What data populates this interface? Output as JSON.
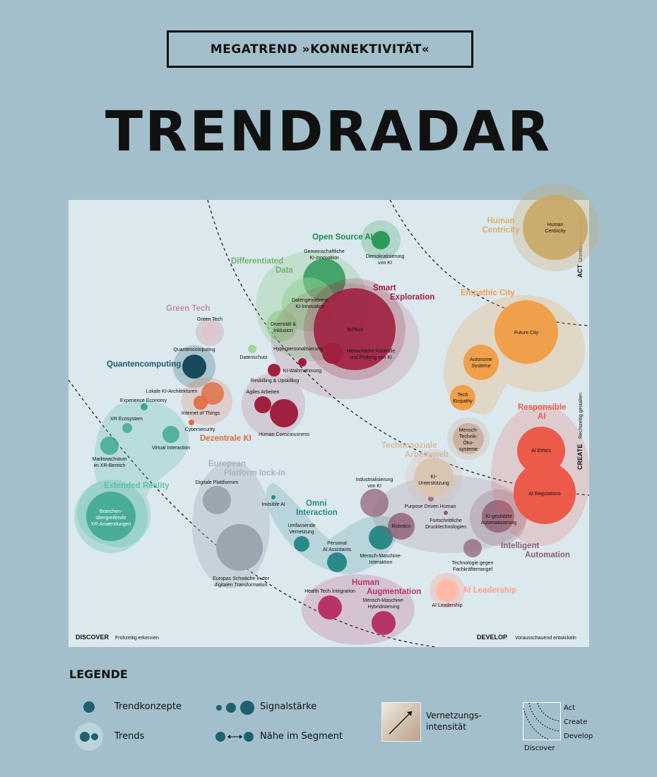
{
  "header": {
    "megatrend": "MEGATREND »KONNEKTIVITÄT«",
    "title": "TRENDRADAR"
  },
  "corners": {
    "discover_bold": "DISCOVER",
    "discover_text": "Frühzeitig erkennen",
    "develop_bold": "DEVELOP",
    "develop_text": "Vorausschauend entwickeln",
    "act_bold": "ACT",
    "act_text": "Unmittelbar handeln",
    "create_bold": "CREATE",
    "create_text": "Rechtzeitig gestalten"
  },
  "colors": {
    "green": "#2e9a5a",
    "teal": "#4bb8a2",
    "darkteal": "#174a5c",
    "crimson": "#a02040",
    "magenta": "#b8336a",
    "orange": "#f0a04a",
    "red": "#ec5a4a",
    "gold": "#c9a765",
    "mauve": "#8e5c74",
    "grey": "#9aa7b0",
    "lightgreen": "#7cc67c",
    "pink": "#ffa08c",
    "rust": "#e06a3e",
    "beige": "#c9a894"
  },
  "segments": [
    {
      "id": "open-source-ai",
      "label": "Open Source AI",
      "color": "#1f8a4c"
    },
    {
      "id": "differentiated-data",
      "label": "Differentiated Data",
      "color": "#6cb66c"
    },
    {
      "id": "smart-exploration",
      "label": "Smart Exploration",
      "color": "#a02040"
    },
    {
      "id": "green-tech",
      "label": "Green Tech",
      "color": "#c4909c"
    },
    {
      "id": "quantencomputing",
      "label": "Quantencomputing",
      "color": "#1d5a6c"
    },
    {
      "id": "dezentrale-ki",
      "label": "Dezentrale KI",
      "color": "#e06a3e"
    },
    {
      "id": "extended-reality",
      "label": "Extended Reality",
      "color": "#5fc0a4"
    },
    {
      "id": "european-platform",
      "label": "European Platform lock-in",
      "color": "#a9b4bc"
    },
    {
      "id": "omni-interaction",
      "label": "Omni Interaction",
      "color": "#2a8a8a"
    },
    {
      "id": "human-augmentation",
      "label": "Human Augmentation",
      "color": "#b8336a"
    },
    {
      "id": "human-centricity",
      "label": "Human Centricity",
      "color": "#c9a765"
    },
    {
      "id": "empathic-city",
      "label": "Empathic City",
      "color": "#f0a04a"
    },
    {
      "id": "responsible-ai",
      "label": "Responsible AI",
      "color": "#ec5a4a"
    },
    {
      "id": "technosoziale",
      "label": "Technosoziale Arbeitswelt",
      "color": "#d5b8a4"
    },
    {
      "id": "intelligent-automation",
      "label": "Intelligent Automation",
      "color": "#8e5c74"
    },
    {
      "id": "ai-leadership",
      "label": "AI Leadership",
      "color": "#ffa08c"
    }
  ],
  "trends": [
    "Gemeinschaftliche KI-Innovation",
    "Demokratisierung von KI",
    "Datengetriebene KI-Innovation",
    "Diversität & Inklusion",
    "EdTech",
    "Hyperpersonalisierung",
    "Datenschutz",
    "Menschliche Kontrolle und Prüfung von KI",
    "KI-Wahrnehmung",
    "Reskilling & Upskilling",
    "Agiles Arbeiten",
    "Human Consciousness",
    "Green Tech",
    "Quantencomputing",
    "Lokale KI-Architekturen",
    "Experience Economy",
    "Internet of Things",
    "XR Ecosystem",
    "Cybersecurity",
    "Virtual Interaction",
    "Marktwachstum im XR-Bereich",
    "Branchen-übergreifende XR-Anwendungen",
    "Digitale Plattformen",
    "Europas Schwäche in der digitalen Transformation",
    "Invisible AI",
    "Umfassende Vernetzung",
    "Personal AI Assistants",
    "Mensch-Maschine-Interaktion",
    "Industrialisierung von KI",
    "Robotics",
    "Purpose Driven Human",
    "Fortschrittliche Drucktechnologien",
    "KI-gestützte Automatisierung",
    "Technologie gegen Fachkräftemangel",
    "Health Tech Integration",
    "Mensch-Maschine-Hybridisierung",
    "AI Leadership",
    "Human Centricity",
    "Future City",
    "Autonome Systeme",
    "Tech Empathy",
    "Mensch-Technik-Öko-systeme",
    "KI-Unterstützung",
    "AI Ethics",
    "AI Regulations"
  ],
  "legend": {
    "title": "LEGENDE",
    "trendkonzepte": "Trendkonzepte",
    "trends": "Trends",
    "signalstaerke": "Signalstärke",
    "naehe": "Nähe im Segment",
    "vernetzung_1": "Vernetzungs-",
    "vernetzung_2": "intensität",
    "act": "Act",
    "create": "Create",
    "develop": "Develop",
    "discover": "Discover"
  }
}
